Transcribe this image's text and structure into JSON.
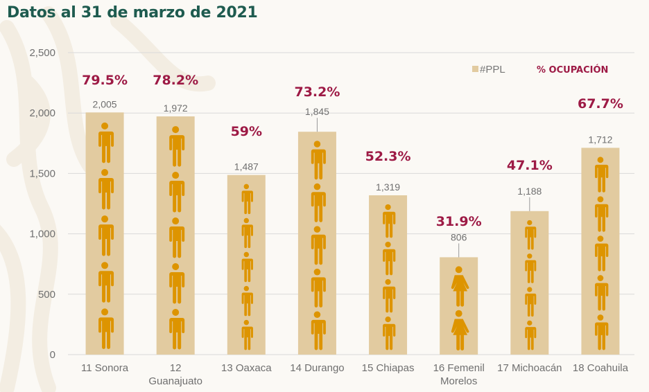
{
  "header": {
    "title": "Datos al 31 de marzo de 2021"
  },
  "colors": {
    "bar": "#e2cba0",
    "icon": "#dd9400",
    "pct": "#9d1a45",
    "title": "#1e5b4f",
    "grid": "#d9d9d9"
  },
  "chart_data": {
    "type": "bar",
    "title": "Datos al 31 de marzo de 2021",
    "xlabel": "",
    "ylabel": "",
    "ylim": [
      0,
      2500
    ],
    "yticks": [
      0,
      500,
      1000,
      1500,
      2000,
      2500
    ],
    "ytick_labels": [
      "0",
      "500",
      "1,000",
      "1,500",
      "2,000",
      "2,500"
    ],
    "grid": true,
    "legend_position": "top-right",
    "legend": [
      {
        "label": "#PPL",
        "type": "swatch"
      },
      {
        "label": "% OCUPACIÓN",
        "type": "text"
      }
    ],
    "categories": [
      [
        "11 Sonora"
      ],
      [
        "12",
        "Guanajuato"
      ],
      [
        "13 Oaxaca"
      ],
      [
        "14 Durango"
      ],
      [
        "15 Chiapas"
      ],
      [
        "16 Femenil",
        "Morelos"
      ],
      [
        "17 Michoacán"
      ],
      [
        "18 Coahuila"
      ]
    ],
    "series": [
      {
        "name": "#PPL",
        "values": [
          2005,
          1972,
          1487,
          1845,
          1319,
          806,
          1188,
          1712
        ],
        "labels": [
          "2,005",
          "1,972",
          "1,487",
          "1,845",
          "1,319",
          "806",
          "1,188",
          "1,712"
        ]
      },
      {
        "name": "% OCUPACIÓN",
        "values": [
          79.5,
          78.2,
          59,
          73.2,
          52.3,
          31.9,
          47.1,
          67.7
        ],
        "labels": [
          "79.5%",
          "78.2%",
          "59%",
          "73.2%",
          "52.3%",
          "31.9%",
          "47.1%",
          "67.7%"
        ]
      }
    ],
    "icons": [
      {
        "type": "male-person-icon",
        "count": 5
      },
      {
        "type": "male-person-icon",
        "count": 5
      },
      {
        "type": "male-person-icon",
        "count": 5
      },
      {
        "type": "male-person-icon",
        "count": 5
      },
      {
        "type": "male-person-icon",
        "count": 4
      },
      {
        "type": "female-person-icon",
        "count": 2
      },
      {
        "type": "male-person-icon",
        "count": 4
      },
      {
        "type": "male-person-icon",
        "count": 5
      }
    ]
  }
}
